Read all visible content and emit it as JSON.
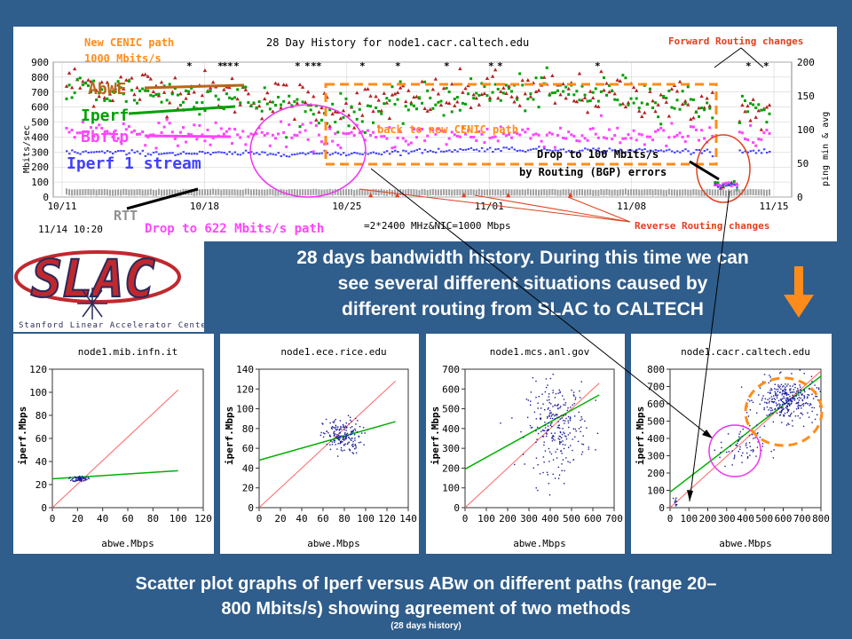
{
  "top_chart": {
    "title": "28 Day History for node1.cacr.caltech.edu",
    "left_axis_label": "Mbits/sec",
    "right_axis_label": "ping min & avg",
    "left_ticks": [
      "0",
      "100",
      "200",
      "300",
      "400",
      "500",
      "600",
      "700",
      "800",
      "900"
    ],
    "right_ticks": [
      "0",
      "50",
      "100",
      "150",
      "200"
    ],
    "x_ticks": [
      "10/11",
      "10/18",
      "10/25",
      "11/01",
      "11/08",
      "11/15"
    ],
    "timestamp": "11/14 10:20",
    "footer_text": "=2*2400 MHz&NIC=1000 Mbps",
    "labels": {
      "new_cenic": "New CENIC path",
      "new_cenic_rate": "1000 Mbits/s",
      "abwe": "AbWE",
      "iperf": "Iperf",
      "bbftp": "Bbftp",
      "iperf1": "Iperf 1 stream",
      "rtt": "RTT",
      "drop622": "Drop to 622 Mbits/s path",
      "back_cenic": "back to new CENIC path",
      "drop100_a": "Drop to 100 Mbits/s",
      "drop100_b": "by Routing (BGP) errors",
      "forward": "Forward Routing changes",
      "reverse": "Reverse Routing changes"
    },
    "colors": {
      "abwe": "#b22222",
      "iperf": "#00a000",
      "bbftp": "#ff44ff",
      "iperf1": "#4040ff",
      "rtt": "#a0a0a0",
      "annot_orange": "#ff8c1a",
      "annot_magenta": "#ee33ee",
      "annot_red": "#e04020"
    }
  },
  "logo": {
    "text": "SLAC",
    "subtitle": "Stanford Linear Accelerator Center"
  },
  "mid_caption": {
    "line1": "28 days bandwidth history. During this time we can",
    "line2": "see several different situations caused by",
    "line3": "different routing from SLAC to CALTECH"
  },
  "bottom_caption": {
    "line1": "Scatter plot graphs of Iperf versus ABw on different paths (range 20–",
    "line2": "800 Mbits/s) showing agreement of two methods",
    "note": "(28 days history)"
  },
  "chart_data": [
    {
      "type": "line",
      "title": "28 Day History for node1.cacr.caltech.edu",
      "ylabel": "Mbits/sec",
      "y2label": "ping min & avg",
      "ylim": [
        0,
        900
      ],
      "y2lim": [
        0,
        200
      ],
      "x": [
        "10/11",
        "10/18",
        "10/25",
        "11/01",
        "11/08",
        "11/15"
      ],
      "series": [
        {
          "name": "AbWE",
          "values": [
            760,
            700,
            600,
            700,
            680,
            560
          ]
        },
        {
          "name": "Iperf",
          "values": [
            720,
            680,
            550,
            700,
            690,
            560
          ]
        },
        {
          "name": "Bbftp",
          "values": [
            450,
            420,
            400,
            420,
            410,
            400
          ]
        },
        {
          "name": "Iperf 1 stream",
          "values": [
            300,
            290,
            290,
            320,
            310,
            300
          ]
        },
        {
          "name": "RTT",
          "values": [
            10,
            10,
            10,
            10,
            10,
            10
          ]
        }
      ],
      "grid": true
    },
    {
      "type": "scatter",
      "title": "node1.mib.infn.it",
      "xlabel": "abwe.Mbps",
      "ylabel": "iperf.Mbps",
      "xticks": [
        0,
        20,
        40,
        60,
        80,
        100,
        120
      ],
      "yticks": [
        0,
        20,
        40,
        60,
        80,
        100,
        120
      ],
      "xlim": [
        0,
        120
      ],
      "ylim": [
        0,
        120
      ],
      "identity": [
        [
          0,
          0
        ],
        [
          100,
          102
        ]
      ],
      "fit": [
        [
          0,
          25
        ],
        [
          100,
          32
        ]
      ],
      "cluster": {
        "cx": 22,
        "cy": 25,
        "sx": 3,
        "sy": 1.2,
        "n": 70
      }
    },
    {
      "type": "scatter",
      "title": "node1.ece.rice.edu",
      "xlabel": "abwe.Mbps",
      "ylabel": "iperf.Mbps",
      "xticks": [
        0,
        20,
        40,
        60,
        80,
        100,
        120,
        140
      ],
      "yticks": [
        0,
        20,
        40,
        60,
        80,
        100,
        120,
        140
      ],
      "xlim": [
        0,
        140
      ],
      "ylim": [
        0,
        140
      ],
      "identity": [
        [
          0,
          0
        ],
        [
          128,
          128
        ]
      ],
      "fit": [
        [
          0,
          48
        ],
        [
          128,
          87
        ]
      ],
      "cluster": {
        "cx": 78,
        "cy": 72,
        "sx": 9,
        "sy": 9,
        "n": 180
      }
    },
    {
      "type": "scatter",
      "title": "node1.mcs.anl.gov",
      "xlabel": "abwe.Mbps",
      "ylabel": "iperf.Mbps",
      "xticks": [
        0,
        100,
        200,
        300,
        400,
        500,
        600,
        700
      ],
      "yticks": [
        0,
        100,
        200,
        300,
        400,
        500,
        600,
        700
      ],
      "xlim": [
        0,
        700
      ],
      "ylim": [
        0,
        700
      ],
      "identity": [
        [
          0,
          0
        ],
        [
          630,
          630
        ]
      ],
      "fit": [
        [
          0,
          195
        ],
        [
          630,
          570
        ]
      ],
      "cluster": {
        "cx": 430,
        "cy": 410,
        "sx": 70,
        "sy": 110,
        "n": 260
      }
    },
    {
      "type": "scatter",
      "title": "node1.cacr.caltech.edu",
      "xlabel": "abwe.Mbps",
      "ylabel": "iperf.Mbps",
      "xticks": [
        0,
        100,
        200,
        300,
        400,
        500,
        600,
        700,
        800
      ],
      "yticks": [
        0,
        100,
        200,
        300,
        400,
        500,
        600,
        700,
        800
      ],
      "xlim": [
        0,
        800
      ],
      "ylim": [
        0,
        800
      ],
      "identity": [
        [
          0,
          0
        ],
        [
          800,
          790
        ]
      ],
      "fit": [
        [
          0,
          90
        ],
        [
          800,
          760
        ]
      ],
      "cluster": {
        "cx": 620,
        "cy": 620,
        "sx": 80,
        "sy": 60,
        "n": 320
      },
      "cluster2": {
        "cx": 380,
        "cy": 350,
        "sx": 60,
        "sy": 60,
        "n": 70
      },
      "low": {
        "cx": 30,
        "cy": 30,
        "n": 10
      }
    }
  ]
}
